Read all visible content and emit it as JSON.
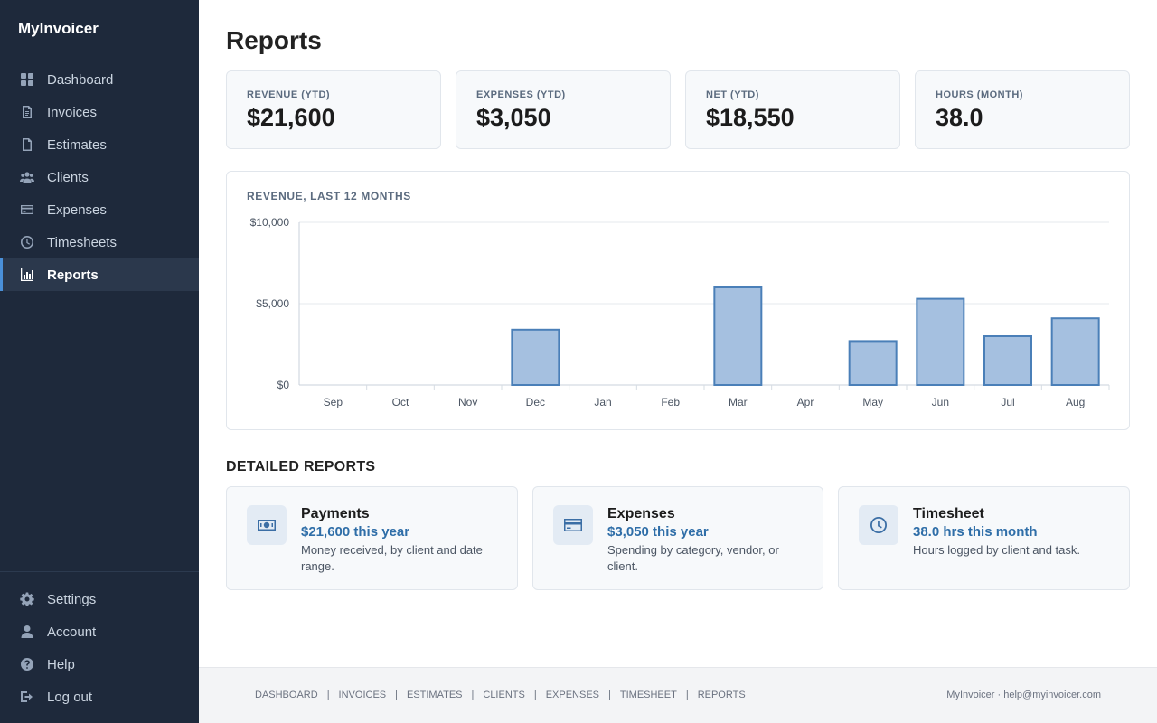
{
  "app": {
    "name": "MyInvoicer"
  },
  "nav": {
    "items": [
      {
        "label": "Dashboard",
        "icon": "dashboard-icon"
      },
      {
        "label": "Invoices",
        "icon": "invoice-icon"
      },
      {
        "label": "Estimates",
        "icon": "estimate-icon"
      },
      {
        "label": "Clients",
        "icon": "clients-icon"
      },
      {
        "label": "Expenses",
        "icon": "credit-card-icon"
      },
      {
        "label": "Timesheets",
        "icon": "clock-icon"
      },
      {
        "label": "Reports",
        "icon": "bar-chart-icon",
        "active": true
      }
    ],
    "bottom": [
      {
        "label": "Settings",
        "icon": "gear-icon"
      },
      {
        "label": "Account",
        "icon": "user-icon"
      },
      {
        "label": "Help",
        "icon": "help-icon"
      },
      {
        "label": "Log out",
        "icon": "logout-icon"
      }
    ]
  },
  "page": {
    "title": "Reports"
  },
  "stats": [
    {
      "label": "REVENUE (YTD)",
      "value": "$21,600"
    },
    {
      "label": "EXPENSES (YTD)",
      "value": "$3,050"
    },
    {
      "label": "NET (YTD)",
      "value": "$18,550"
    },
    {
      "label": "HOURS (MONTH)",
      "value": "38.0"
    }
  ],
  "chart_data": {
    "type": "bar",
    "title": "REVENUE, LAST 12 MONTHS",
    "categories": [
      "Sep",
      "Oct",
      "Nov",
      "Dec",
      "Jan",
      "Feb",
      "Mar",
      "Apr",
      "May",
      "Jun",
      "Jul",
      "Aug"
    ],
    "values": [
      0,
      0,
      0,
      3400,
      0,
      0,
      6000,
      0,
      2700,
      5300,
      3000,
      4100
    ],
    "ylim": [
      0,
      10000
    ],
    "yticks": [
      "$0",
      "$5,000",
      "$10,000"
    ],
    "grid": true,
    "bar_color": "#a5c0e0",
    "bar_border": "#4a7fb8"
  },
  "detailed": {
    "title": "DETAILED REPORTS",
    "cards": [
      {
        "title": "Payments",
        "sub": "$21,600 this year",
        "desc": "Money received, by client and date range.",
        "icon": "money-icon"
      },
      {
        "title": "Expenses",
        "sub": "$3,050 this year",
        "desc": "Spending by category, vendor, or client.",
        "icon": "credit-card-icon"
      },
      {
        "title": "Timesheet",
        "sub": "38.0 hrs this month",
        "desc": "Hours logged by client and task.",
        "icon": "clock-icon"
      }
    ]
  },
  "footer": {
    "links": [
      "DASHBOARD",
      "INVOICES",
      "ESTIMATES",
      "CLIENTS",
      "EXPENSES",
      "TIMESHEET",
      "REPORTS"
    ],
    "separator": "|",
    "right": "MyInvoicer · help@myinvoicer.com"
  }
}
